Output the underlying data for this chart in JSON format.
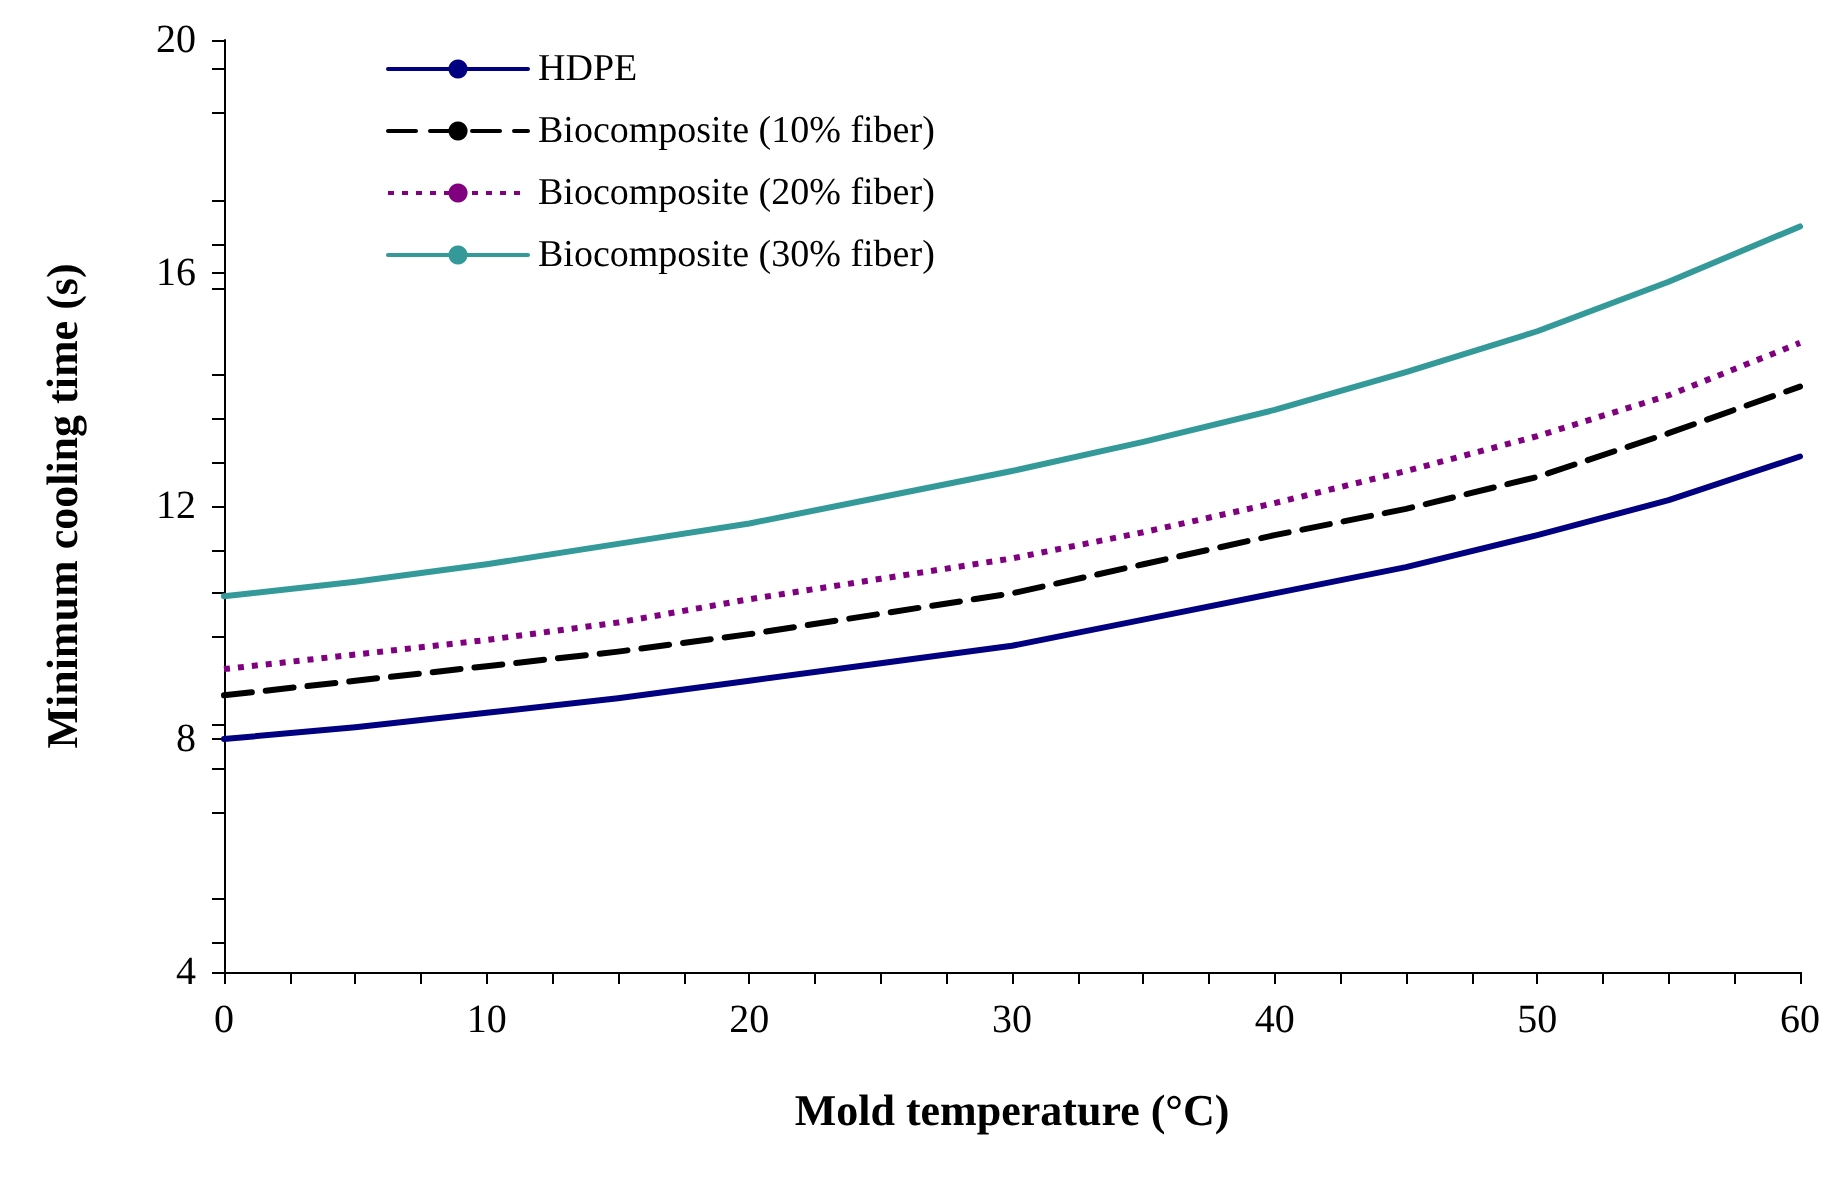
{
  "chart_data": {
    "type": "line",
    "xlabel": "Mold temperature (°C)",
    "ylabel": "Minimum cooling time (s)",
    "x": [
      0,
      5,
      10,
      15,
      20,
      25,
      30,
      35,
      40,
      45,
      50,
      55,
      60
    ],
    "series": [
      {
        "name": "HDPE",
        "color": "#000080",
        "line_style": "solid",
        "values": [
          8.0,
          8.2,
          8.45,
          8.7,
          9.0,
          9.3,
          9.6,
          10.05,
          10.5,
          10.95,
          11.5,
          12.1,
          12.85
        ]
      },
      {
        "name": "Biocomposite (10% fiber)",
        "color": "#000000",
        "line_style": "dashed",
        "values": [
          8.75,
          9.0,
          9.25,
          9.5,
          9.8,
          10.15,
          10.5,
          11.0,
          11.5,
          11.95,
          12.5,
          13.25,
          14.05
        ]
      },
      {
        "name": "Biocomposite (20% fiber)",
        "color": "#800080",
        "line_style": "dotted",
        "values": [
          9.2,
          9.45,
          9.7,
          10.0,
          10.4,
          10.75,
          11.1,
          11.55,
          12.05,
          12.6,
          13.2,
          13.9,
          14.8
        ]
      },
      {
        "name": "Biocomposite (30% fiber)",
        "color": "#339999",
        "line_style": "solid",
        "values": [
          10.45,
          10.7,
          11.0,
          11.35,
          11.7,
          12.15,
          12.6,
          13.1,
          13.65,
          14.3,
          15.0,
          15.85,
          16.8
        ]
      }
    ],
    "xlim": [
      0,
      60
    ],
    "xticks": [
      0,
      10,
      20,
      30,
      40,
      50,
      60
    ],
    "ylim": [
      4,
      20
    ],
    "yticks": [
      4,
      8,
      12,
      16,
      20
    ],
    "grid": false,
    "legend": "top left",
    "marker": "none"
  }
}
